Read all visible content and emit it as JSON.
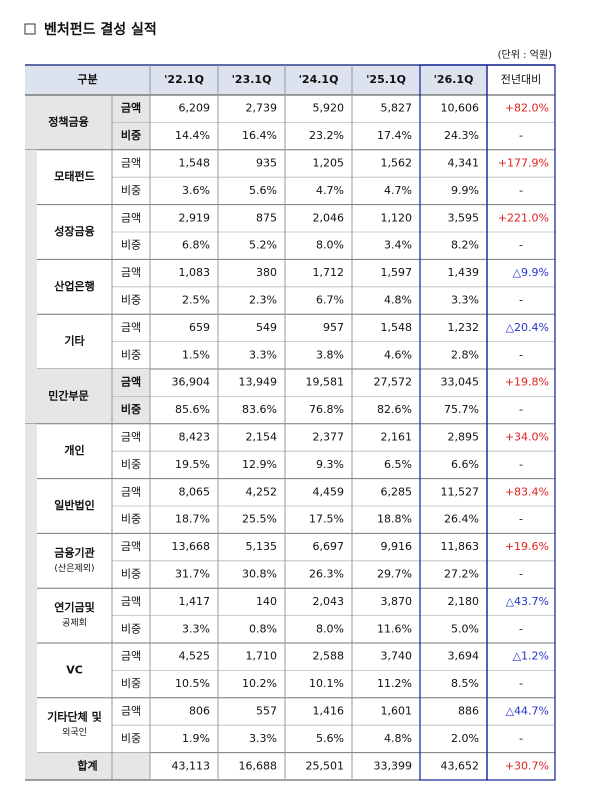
{
  "header": {
    "title": "벤처펀드 결성 실적",
    "unit": "(단위 : 억원)"
  },
  "table": {
    "columns": [
      "구분",
      "'22.1Q",
      "'23.1Q",
      "'24.1Q",
      "'25.1Q",
      "'26.1Q",
      "전년대비"
    ],
    "groups": [
      {
        "level": "main",
        "label": [
          "정책금융"
        ],
        "rows": [
          {
            "label": "금액",
            "cells": [
              "6,209",
              "2,739",
              "5,920",
              "5,827",
              "10,606"
            ],
            "change": "+82.0%"
          },
          {
            "label": "비중",
            "cells": [
              "14.4%",
              "16.4%",
              "23.2%",
              "17.4%",
              "24.3%"
            ],
            "change": "-"
          }
        ]
      },
      {
        "level": "sub",
        "label": [
          "모태펀드"
        ],
        "rows": [
          {
            "label": "금액",
            "cells": [
              "1,548",
              "935",
              "1,205",
              "1,562",
              "4,341"
            ],
            "change": "+177.9%"
          },
          {
            "label": "비중",
            "cells": [
              "3.6%",
              "5.6%",
              "4.7%",
              "4.7%",
              "9.9%"
            ],
            "change": "-"
          }
        ]
      },
      {
        "level": "sub",
        "label": [
          "성장금융"
        ],
        "rows": [
          {
            "label": "금액",
            "cells": [
              "2,919",
              "875",
              "2,046",
              "1,120",
              "3,595"
            ],
            "change": "+221.0%"
          },
          {
            "label": "비중",
            "cells": [
              "6.8%",
              "5.2%",
              "8.0%",
              "3.4%",
              "8.2%"
            ],
            "change": "-"
          }
        ]
      },
      {
        "level": "sub",
        "label": [
          "산업은행"
        ],
        "rows": [
          {
            "label": "금액",
            "cells": [
              "1,083",
              "380",
              "1,712",
              "1,597",
              "1,439"
            ],
            "change": "△9.9%"
          },
          {
            "label": "비중",
            "cells": [
              "2.5%",
              "2.3%",
              "6.7%",
              "4.8%",
              "3.3%"
            ],
            "change": "-"
          }
        ]
      },
      {
        "level": "sub",
        "label": [
          "기타"
        ],
        "rows": [
          {
            "label": "금액",
            "cells": [
              "659",
              "549",
              "957",
              "1,548",
              "1,232"
            ],
            "change": "△20.4%"
          },
          {
            "label": "비중",
            "cells": [
              "1.5%",
              "3.3%",
              "3.8%",
              "4.6%",
              "2.8%"
            ],
            "change": "-"
          }
        ]
      },
      {
        "level": "main",
        "label": [
          "민간부문"
        ],
        "rows": [
          {
            "label": "금액",
            "cells": [
              "36,904",
              "13,949",
              "19,581",
              "27,572",
              "33,045"
            ],
            "change": "+19.8%"
          },
          {
            "label": "비중",
            "cells": [
              "85.6%",
              "83.6%",
              "76.8%",
              "82.6%",
              "75.7%"
            ],
            "change": "-"
          }
        ]
      },
      {
        "level": "sub",
        "label": [
          "개인"
        ],
        "rows": [
          {
            "label": "금액",
            "cells": [
              "8,423",
              "2,154",
              "2,377",
              "2,161",
              "2,895"
            ],
            "change": "+34.0%"
          },
          {
            "label": "비중",
            "cells": [
              "19.5%",
              "12.9%",
              "9.3%",
              "6.5%",
              "6.6%"
            ],
            "change": "-"
          }
        ]
      },
      {
        "level": "sub",
        "label": [
          "일반법인"
        ],
        "rows": [
          {
            "label": "금액",
            "cells": [
              "8,065",
              "4,252",
              "4,459",
              "6,285",
              "11,527"
            ],
            "change": "+83.4%"
          },
          {
            "label": "비중",
            "cells": [
              "18.7%",
              "25.5%",
              "17.5%",
              "18.8%",
              "26.4%"
            ],
            "change": "-"
          }
        ]
      },
      {
        "level": "sub",
        "label": [
          "금융기관",
          "(산은제외)"
        ],
        "rows": [
          {
            "label": "금액",
            "cells": [
              "13,668",
              "5,135",
              "6,697",
              "9,916",
              "11,863"
            ],
            "change": "+19.6%"
          },
          {
            "label": "비중",
            "cells": [
              "31.7%",
              "30.8%",
              "26.3%",
              "29.7%",
              "27.2%"
            ],
            "change": "-"
          }
        ]
      },
      {
        "level": "sub",
        "label": [
          "연기금및",
          "공제회"
        ],
        "rows": [
          {
            "label": "금액",
            "cells": [
              "1,417",
              "140",
              "2,043",
              "3,870",
              "2,180"
            ],
            "change": "△43.7%"
          },
          {
            "label": "비중",
            "cells": [
              "3.3%",
              "0.8%",
              "8.0%",
              "11.6%",
              "5.0%"
            ],
            "change": "-"
          }
        ]
      },
      {
        "level": "sub",
        "label": [
          "VC"
        ],
        "rows": [
          {
            "label": "금액",
            "cells": [
              "4,525",
              "1,710",
              "2,588",
              "3,740",
              "3,694"
            ],
            "change": "△1.2%"
          },
          {
            "label": "비중",
            "cells": [
              "10.5%",
              "10.2%",
              "10.1%",
              "11.2%",
              "8.5%"
            ],
            "change": "-"
          }
        ]
      },
      {
        "level": "sub",
        "label": [
          "기타단체 및",
          "외국인"
        ],
        "rows": [
          {
            "label": "금액",
            "cells": [
              "806",
              "557",
              "1,416",
              "1,601",
              "886"
            ],
            "change": "△44.7%"
          },
          {
            "label": "비중",
            "cells": [
              "1.9%",
              "3.3%",
              "5.6%",
              "4.8%",
              "2.0%"
            ],
            "change": "-"
          }
        ]
      }
    ],
    "total": {
      "label": "합계",
      "cells": [
        "43,113",
        "16,688",
        "25,501",
        "33,399",
        "43,652"
      ],
      "change": "+30.7%"
    }
  }
}
